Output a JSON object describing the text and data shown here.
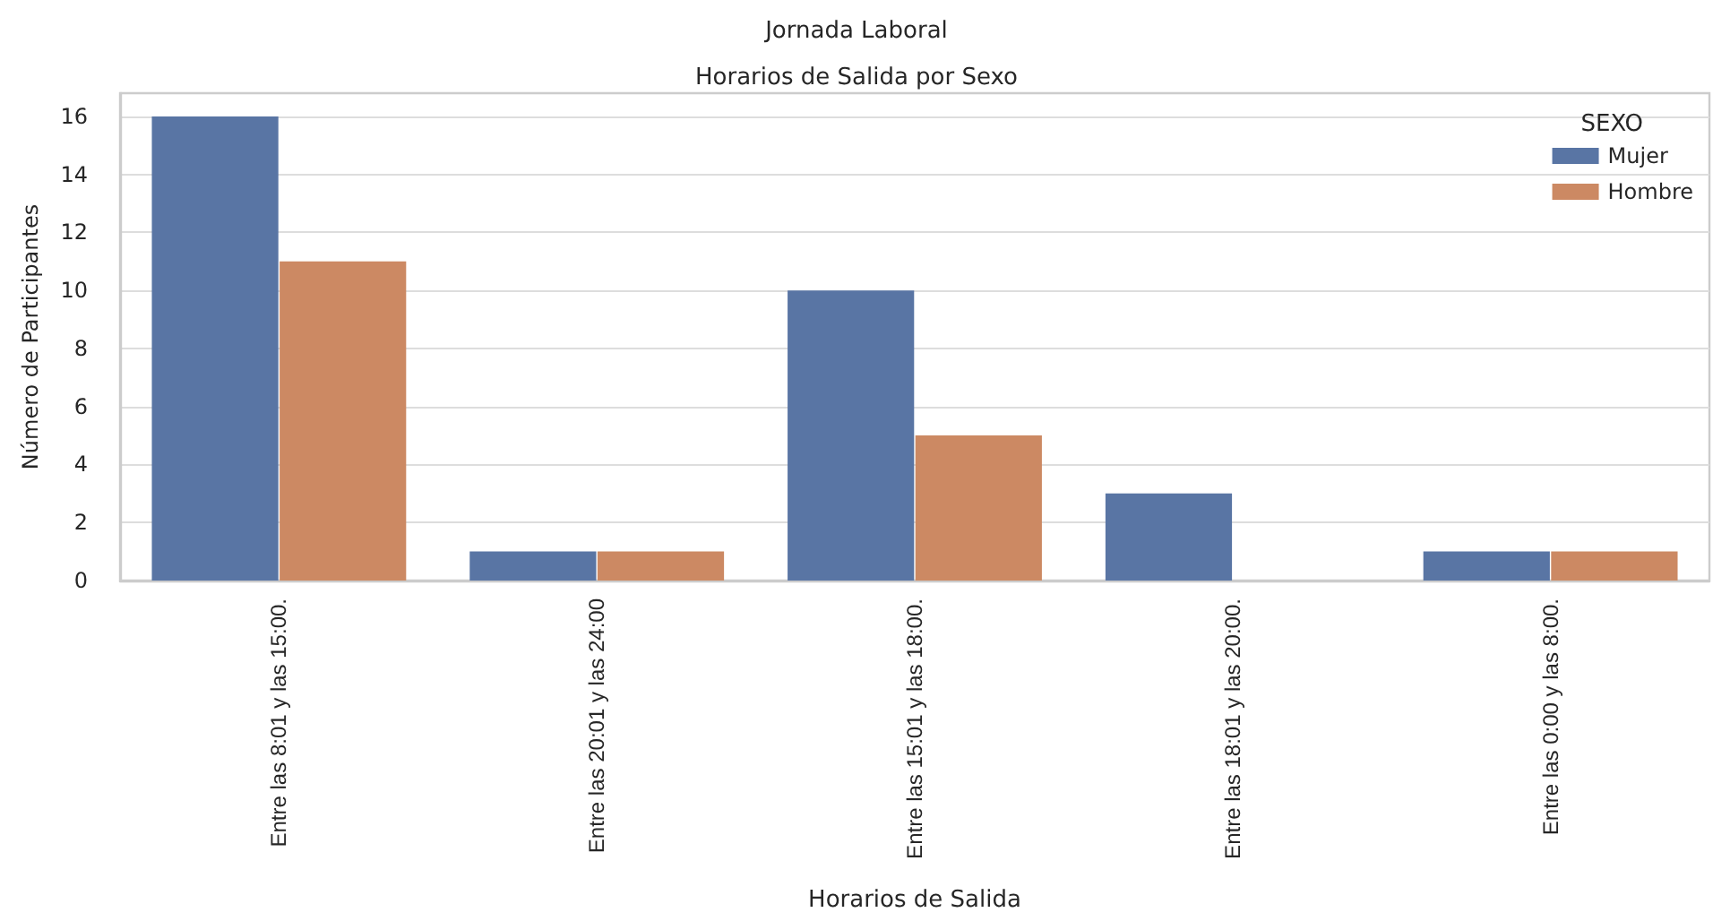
{
  "chart_data": {
    "type": "bar",
    "title": "Jornada Laboral",
    "subtitle": "Horarios de Salida por Sexo",
    "xlabel": "Horarios de Salida",
    "ylabel": "Número de Participantes",
    "legend_title": "SEXO",
    "categories": [
      "Entre las 8:01 y las 15:00.",
      "Entre las 20:01 y las 24:00",
      "Entre las 15:01 y las 18:00.",
      "Entre las 18:01 y las 20:00.",
      "Entre las 0:00 y las 8:00."
    ],
    "series": [
      {
        "name": "Mujer",
        "color": "#5975a4",
        "values": [
          16,
          1,
          10,
          3,
          1
        ]
      },
      {
        "name": "Hombre",
        "color": "#cc8963",
        "values": [
          11,
          1,
          5,
          0,
          1
        ]
      }
    ],
    "ylim": [
      0,
      16.8
    ],
    "yticks": [
      0,
      2,
      4,
      6,
      8,
      10,
      12,
      14,
      16
    ],
    "grid": "y",
    "legend": "top right"
  }
}
